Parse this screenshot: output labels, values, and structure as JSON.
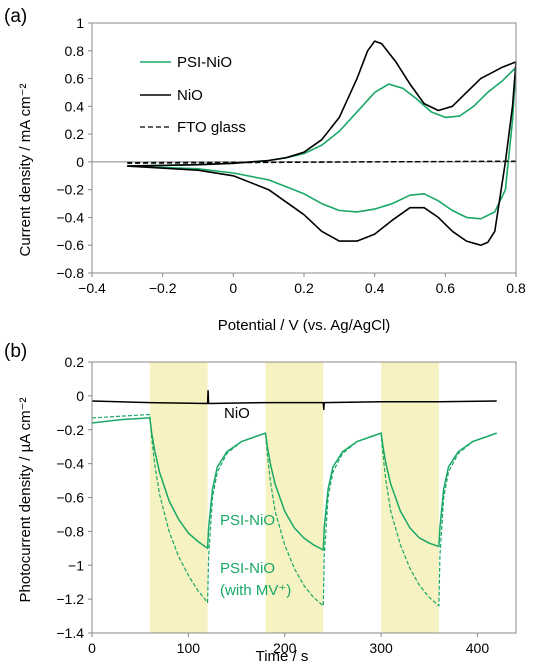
{
  "colors": {
    "green": "#1aa867",
    "black": "#000000",
    "shade": "#f6f2c1"
  },
  "chart_data": [
    {
      "type": "line",
      "panel_label": "(a)",
      "xlabel": "Potential / V (vs. Ag/AgCl)",
      "ylabel": "Current density / mA cm⁻²",
      "xlim": [
        -0.4,
        0.8
      ],
      "ylim": [
        -0.8,
        1.0
      ],
      "xticks": [
        -0.4,
        -0.2,
        0,
        0.2,
        0.4,
        0.6,
        0.8
      ],
      "yticks": [
        -0.8,
        -0.6,
        -0.4,
        -0.2,
        0,
        0.2,
        0.4,
        0.6,
        0.8,
        1
      ],
      "grid": false,
      "legend_position": "top-left",
      "series": [
        {
          "name": "PSI-NiO",
          "color": "#1aa867",
          "style": "solid",
          "forward": [
            [
              -0.3,
              -0.03
            ],
            [
              -0.1,
              -0.02
            ],
            [
              0,
              -0.01
            ],
            [
              0.05,
              0
            ],
            [
              0.1,
              0.01
            ],
            [
              0.15,
              0.03
            ],
            [
              0.2,
              0.06
            ],
            [
              0.25,
              0.12
            ],
            [
              0.3,
              0.22
            ],
            [
              0.35,
              0.36
            ],
            [
              0.4,
              0.5
            ],
            [
              0.44,
              0.56
            ],
            [
              0.48,
              0.53
            ],
            [
              0.52,
              0.45
            ],
            [
              0.56,
              0.36
            ],
            [
              0.6,
              0.32
            ],
            [
              0.64,
              0.33
            ],
            [
              0.68,
              0.4
            ],
            [
              0.72,
              0.5
            ],
            [
              0.76,
              0.58
            ],
            [
              0.8,
              0.68
            ]
          ],
          "reverse": [
            [
              0.8,
              0.68
            ],
            [
              0.79,
              0.3
            ],
            [
              0.77,
              -0.2
            ],
            [
              0.74,
              -0.36
            ],
            [
              0.7,
              -0.41
            ],
            [
              0.66,
              -0.4
            ],
            [
              0.62,
              -0.35
            ],
            [
              0.58,
              -0.28
            ],
            [
              0.54,
              -0.23
            ],
            [
              0.5,
              -0.24
            ],
            [
              0.45,
              -0.3
            ],
            [
              0.4,
              -0.34
            ],
            [
              0.35,
              -0.36
            ],
            [
              0.3,
              -0.35
            ],
            [
              0.25,
              -0.3
            ],
            [
              0.2,
              -0.23
            ],
            [
              0.1,
              -0.13
            ],
            [
              0,
              -0.08
            ],
            [
              -0.1,
              -0.05
            ],
            [
              -0.3,
              -0.03
            ]
          ]
        },
        {
          "name": "NiO",
          "color": "#000000",
          "style": "solid",
          "forward": [
            [
              -0.3,
              -0.03
            ],
            [
              -0.1,
              -0.02
            ],
            [
              0,
              -0.01
            ],
            [
              0.05,
              0
            ],
            [
              0.1,
              0.01
            ],
            [
              0.15,
              0.03
            ],
            [
              0.2,
              0.07
            ],
            [
              0.25,
              0.16
            ],
            [
              0.3,
              0.32
            ],
            [
              0.35,
              0.6
            ],
            [
              0.38,
              0.8
            ],
            [
              0.4,
              0.87
            ],
            [
              0.42,
              0.85
            ],
            [
              0.46,
              0.72
            ],
            [
              0.5,
              0.56
            ],
            [
              0.54,
              0.42
            ],
            [
              0.58,
              0.37
            ],
            [
              0.62,
              0.4
            ],
            [
              0.66,
              0.5
            ],
            [
              0.7,
              0.6
            ],
            [
              0.76,
              0.68
            ],
            [
              0.8,
              0.72
            ]
          ],
          "reverse": [
            [
              0.8,
              0.72
            ],
            [
              0.79,
              0.4
            ],
            [
              0.77,
              0
            ],
            [
              0.74,
              -0.5
            ],
            [
              0.72,
              -0.58
            ],
            [
              0.7,
              -0.6
            ],
            [
              0.66,
              -0.57
            ],
            [
              0.62,
              -0.5
            ],
            [
              0.58,
              -0.4
            ],
            [
              0.54,
              -0.33
            ],
            [
              0.5,
              -0.33
            ],
            [
              0.45,
              -0.42
            ],
            [
              0.4,
              -0.52
            ],
            [
              0.35,
              -0.57
            ],
            [
              0.3,
              -0.57
            ],
            [
              0.25,
              -0.5
            ],
            [
              0.2,
              -0.38
            ],
            [
              0.1,
              -0.2
            ],
            [
              0,
              -0.1
            ],
            [
              -0.1,
              -0.06
            ],
            [
              -0.3,
              -0.03
            ]
          ]
        },
        {
          "name": "FTO glass",
          "color": "#000000",
          "style": "dashed",
          "forward": [
            [
              -0.3,
              -0.005
            ],
            [
              0.8,
              0.005
            ]
          ],
          "reverse": [
            [
              0.8,
              0.005
            ],
            [
              -0.3,
              -0.01
            ]
          ]
        }
      ]
    },
    {
      "type": "line",
      "panel_label": "(b)",
      "xlabel": "Time / s",
      "ylabel": "Photocurrent density / µA cm⁻²",
      "xlim": [
        0,
        440
      ],
      "ylim": [
        -1.4,
        0.2
      ],
      "xticks": [
        0,
        100,
        200,
        300,
        400
      ],
      "yticks": [
        -1.4,
        -1.2,
        -1,
        -0.8,
        -0.6,
        -0.4,
        -0.2,
        0,
        0.2
      ],
      "grid": false,
      "illumination_intervals": [
        [
          60,
          120
        ],
        [
          180,
          240
        ],
        [
          300,
          360
        ]
      ],
      "annotations": [
        "NiO",
        "PSI-NiO",
        "PSI-NiO",
        "(with MV⁺)"
      ],
      "series": [
        {
          "name": "NiO",
          "color": "#000000",
          "style": "solid",
          "points": [
            [
              0,
              -0.03
            ],
            [
              60,
              -0.04
            ],
            [
              120,
              -0.045
            ],
            [
              120.5,
              0.03
            ],
            [
              121,
              -0.045
            ],
            [
              180,
              -0.04
            ],
            [
              240,
              -0.04
            ],
            [
              240.5,
              -0.08
            ],
            [
              241,
              -0.04
            ],
            [
              300,
              -0.035
            ],
            [
              360,
              -0.035
            ],
            [
              420,
              -0.03
            ]
          ]
        },
        {
          "name": "PSI-NiO",
          "color": "#1aa867",
          "style": "solid",
          "points": [
            [
              0,
              -0.16
            ],
            [
              30,
              -0.14
            ],
            [
              60,
              -0.13
            ],
            [
              62,
              -0.22
            ],
            [
              65,
              -0.32
            ],
            [
              70,
              -0.45
            ],
            [
              80,
              -0.62
            ],
            [
              90,
              -0.73
            ],
            [
              100,
              -0.81
            ],
            [
              110,
              -0.86
            ],
            [
              120,
              -0.9
            ],
            [
              121,
              -0.78
            ],
            [
              125,
              -0.55
            ],
            [
              130,
              -0.42
            ],
            [
              140,
              -0.33
            ],
            [
              155,
              -0.27
            ],
            [
              170,
              -0.24
            ],
            [
              180,
              -0.22
            ],
            [
              182,
              -0.3
            ],
            [
              185,
              -0.4
            ],
            [
              190,
              -0.52
            ],
            [
              200,
              -0.68
            ],
            [
              210,
              -0.78
            ],
            [
              220,
              -0.84
            ],
            [
              230,
              -0.88
            ],
            [
              240,
              -0.91
            ],
            [
              241,
              -0.78
            ],
            [
              245,
              -0.55
            ],
            [
              250,
              -0.42
            ],
            [
              260,
              -0.33
            ],
            [
              275,
              -0.27
            ],
            [
              290,
              -0.24
            ],
            [
              300,
              -0.22
            ],
            [
              302,
              -0.3
            ],
            [
              305,
              -0.4
            ],
            [
              310,
              -0.52
            ],
            [
              320,
              -0.68
            ],
            [
              330,
              -0.78
            ],
            [
              340,
              -0.84
            ],
            [
              350,
              -0.87
            ],
            [
              360,
              -0.89
            ],
            [
              361,
              -0.78
            ],
            [
              365,
              -0.55
            ],
            [
              370,
              -0.42
            ],
            [
              380,
              -0.33
            ],
            [
              395,
              -0.27
            ],
            [
              410,
              -0.24
            ],
            [
              420,
              -0.22
            ]
          ]
        },
        {
          "name": "PSI-NiO (with MV⁺)",
          "color": "#1aa867",
          "style": "dashed",
          "points": [
            [
              0,
              -0.13
            ],
            [
              30,
              -0.12
            ],
            [
              60,
              -0.11
            ],
            [
              62,
              -0.25
            ],
            [
              65,
              -0.4
            ],
            [
              70,
              -0.58
            ],
            [
              80,
              -0.8
            ],
            [
              90,
              -0.95
            ],
            [
              100,
              -1.06
            ],
            [
              110,
              -1.15
            ],
            [
              120,
              -1.22
            ],
            [
              121,
              -0.95
            ],
            [
              125,
              -0.6
            ],
            [
              130,
              -0.45
            ],
            [
              140,
              -0.34
            ],
            [
              155,
              -0.27
            ],
            [
              170,
              -0.24
            ],
            [
              180,
              -0.22
            ],
            [
              182,
              -0.35
            ],
            [
              185,
              -0.5
            ],
            [
              190,
              -0.68
            ],
            [
              200,
              -0.88
            ],
            [
              210,
              -1.02
            ],
            [
              220,
              -1.12
            ],
            [
              230,
              -1.19
            ],
            [
              240,
              -1.24
            ],
            [
              241,
              -0.95
            ],
            [
              245,
              -0.6
            ],
            [
              250,
              -0.45
            ],
            [
              260,
              -0.34
            ],
            [
              275,
              -0.27
            ],
            [
              290,
              -0.24
            ],
            [
              300,
              -0.22
            ],
            [
              302,
              -0.35
            ],
            [
              305,
              -0.5
            ],
            [
              310,
              -0.68
            ],
            [
              320,
              -0.88
            ],
            [
              330,
              -1.02
            ],
            [
              340,
              -1.12
            ],
            [
              350,
              -1.19
            ],
            [
              360,
              -1.24
            ],
            [
              361,
              -0.95
            ],
            [
              365,
              -0.6
            ],
            [
              370,
              -0.45
            ],
            [
              380,
              -0.34
            ],
            [
              395,
              -0.27
            ],
            [
              410,
              -0.24
            ],
            [
              420,
              -0.22
            ]
          ]
        }
      ]
    }
  ]
}
